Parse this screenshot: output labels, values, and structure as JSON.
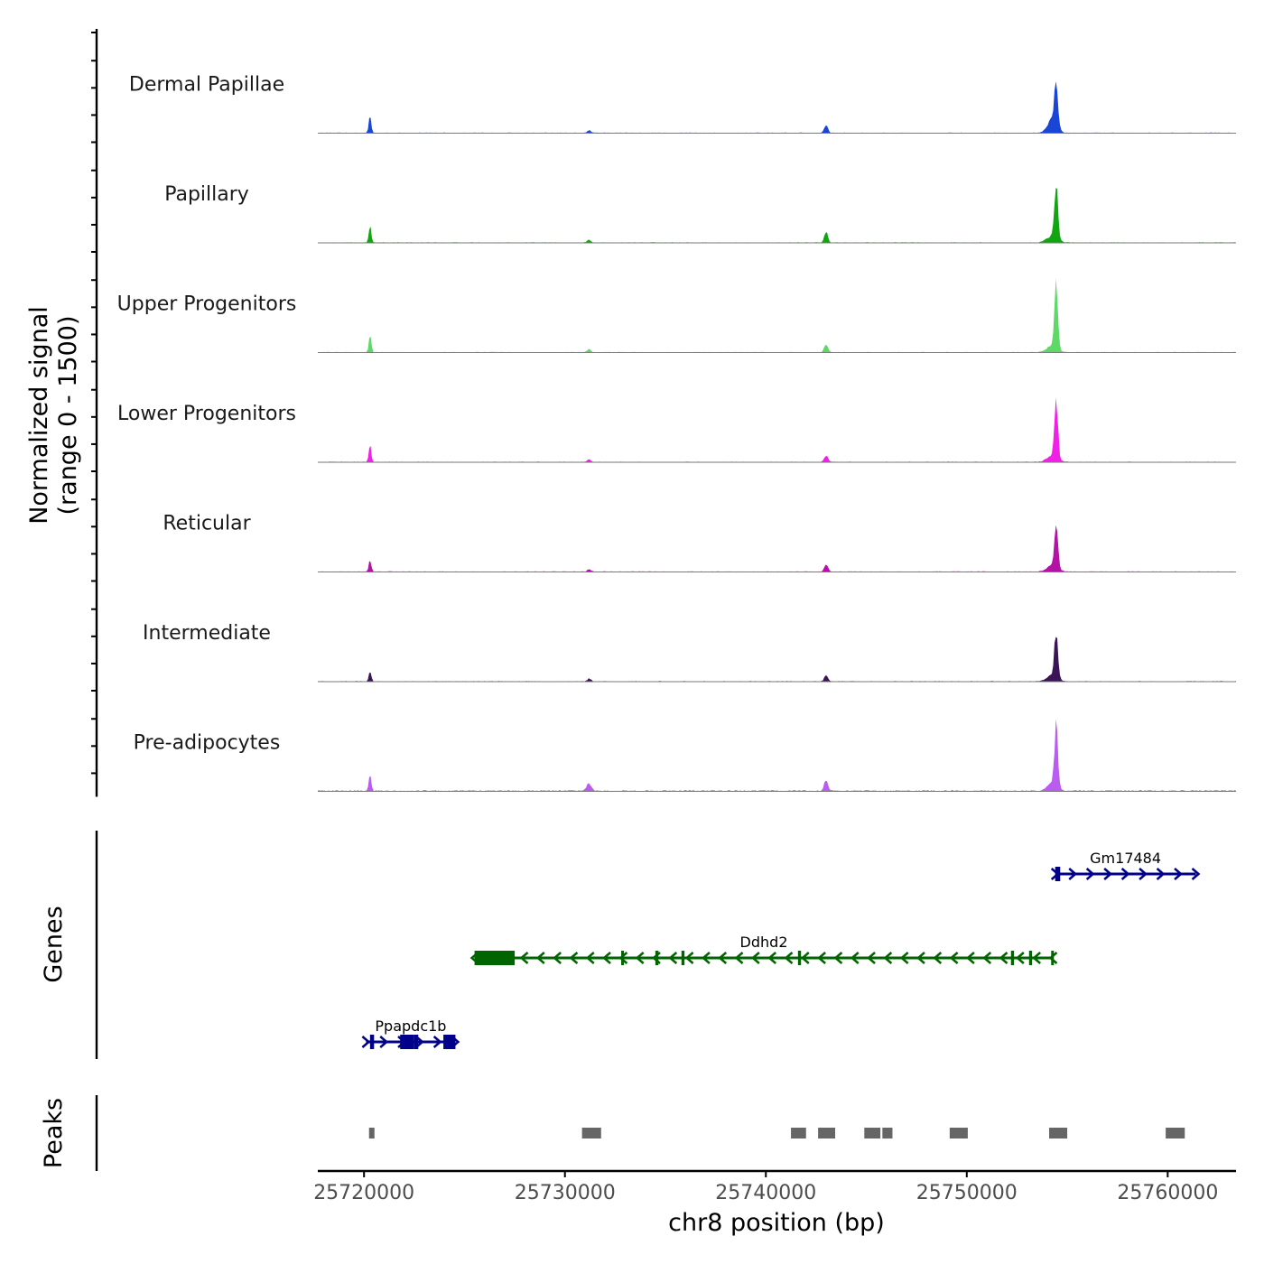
{
  "chart_data": {
    "type": "area",
    "title": "",
    "ylabel": "Normalized signal\n(range 0 - 1500)",
    "ylabel_lines": [
      "Normalized signal",
      "(range 0 - 1500)"
    ],
    "ylim": [
      0,
      1500
    ],
    "xlabel": "chr8 position (bp)",
    "xlim": [
      25717700,
      25763400
    ],
    "x_ticks": [
      25720000,
      25730000,
      25740000,
      25750000,
      25760000
    ],
    "x_tick_labels": [
      "25720000",
      "25730000",
      "25740000",
      "25750000",
      "25760000"
    ],
    "peak_positions": [
      25720300,
      25731200,
      25743000,
      25754450
    ],
    "tracks": [
      {
        "name": "Dermal Papillae",
        "color": "#1A46D6",
        "peaks": [
          [
            25720300,
            430,
            60
          ],
          [
            25731200,
            70,
            80
          ],
          [
            25743000,
            180,
            90
          ],
          [
            25754250,
            330,
            230
          ],
          [
            25754450,
            1150,
            85
          ]
        ],
        "bg": 14
      },
      {
        "name": "Papillary",
        "color": "#11A511",
        "peaks": [
          [
            25720300,
            380,
            60
          ],
          [
            25731200,
            70,
            90
          ],
          [
            25743000,
            260,
            90
          ],
          [
            25754250,
            170,
            260
          ],
          [
            25754450,
            1310,
            85
          ]
        ],
        "bg": 14
      },
      {
        "name": "Upper Progenitors",
        "color": "#5DD869",
        "peaks": [
          [
            25720300,
            420,
            60
          ],
          [
            25731200,
            80,
            90
          ],
          [
            25743000,
            210,
            90
          ],
          [
            25754250,
            160,
            260
          ],
          [
            25754450,
            1650,
            85
          ]
        ],
        "bg": 14
      },
      {
        "name": "Lower Progenitors",
        "color": "#F020E6",
        "peaks": [
          [
            25720300,
            420,
            60
          ],
          [
            25731200,
            60,
            90
          ],
          [
            25743000,
            160,
            90
          ],
          [
            25754250,
            170,
            260
          ],
          [
            25754450,
            1440,
            85
          ]
        ],
        "bg": 14
      },
      {
        "name": "Reticular",
        "color": "#B312A7",
        "peaks": [
          [
            25720300,
            300,
            60
          ],
          [
            25731200,
            60,
            90
          ],
          [
            25743000,
            180,
            90
          ],
          [
            25754250,
            150,
            260
          ],
          [
            25754450,
            1100,
            85
          ]
        ],
        "bg": 14
      },
      {
        "name": "Intermediate",
        "color": "#3A1456",
        "peaks": [
          [
            25720300,
            260,
            60
          ],
          [
            25731200,
            70,
            90
          ],
          [
            25743000,
            150,
            90
          ],
          [
            25754250,
            150,
            260
          ],
          [
            25754450,
            1130,
            85
          ]
        ],
        "bg": 14
      },
      {
        "name": "Pre-adipocytes",
        "color": "#BB5CF0",
        "peaks": [
          [
            25720300,
            410,
            60
          ],
          [
            25731200,
            180,
            120
          ],
          [
            25743000,
            270,
            90
          ],
          [
            25754250,
            190,
            260
          ],
          [
            25754450,
            1480,
            85
          ]
        ],
        "bg": 28
      }
    ],
    "genes_panel_label": "Genes",
    "peaks_panel_label": "Peaks",
    "genes": [
      {
        "name": "Gm17484",
        "strand": "+",
        "start": 25754400,
        "end": 25761400,
        "row": 0,
        "color": "#00008B",
        "exons": [
          [
            25754400,
            25754650
          ]
        ]
      },
      {
        "name": "Ddhd2",
        "strand": "-",
        "start": 25725500,
        "end": 25754300,
        "row": 1,
        "color": "#006400",
        "exons": [
          [
            25725500,
            25727500
          ],
          [
            25732800,
            25732900
          ],
          [
            25734500,
            25734650
          ],
          [
            25735800,
            25735950
          ],
          [
            25741600,
            25741750
          ],
          [
            25752200,
            25752350
          ],
          [
            25753100,
            25753250
          ],
          [
            25754200,
            25754300
          ]
        ]
      },
      {
        "name": "Ppapdc1b",
        "strand": "+",
        "start": 25720100,
        "end": 25724550,
        "row": 2,
        "color": "#00008B",
        "exons": [
          [
            25720300,
            25720500
          ],
          [
            25721800,
            25722500
          ],
          [
            25722500,
            25722700
          ],
          [
            25723950,
            25724550
          ]
        ]
      }
    ],
    "peak_regions": [
      [
        25720250,
        25720500
      ],
      [
        25730850,
        25731800
      ],
      [
        25741250,
        25742000
      ],
      [
        25742600,
        25743450
      ],
      [
        25744900,
        25745700
      ],
      [
        25745800,
        25746300
      ],
      [
        25749150,
        25750050
      ],
      [
        25754100,
        25755000
      ],
      [
        25759900,
        25760850
      ]
    ]
  }
}
